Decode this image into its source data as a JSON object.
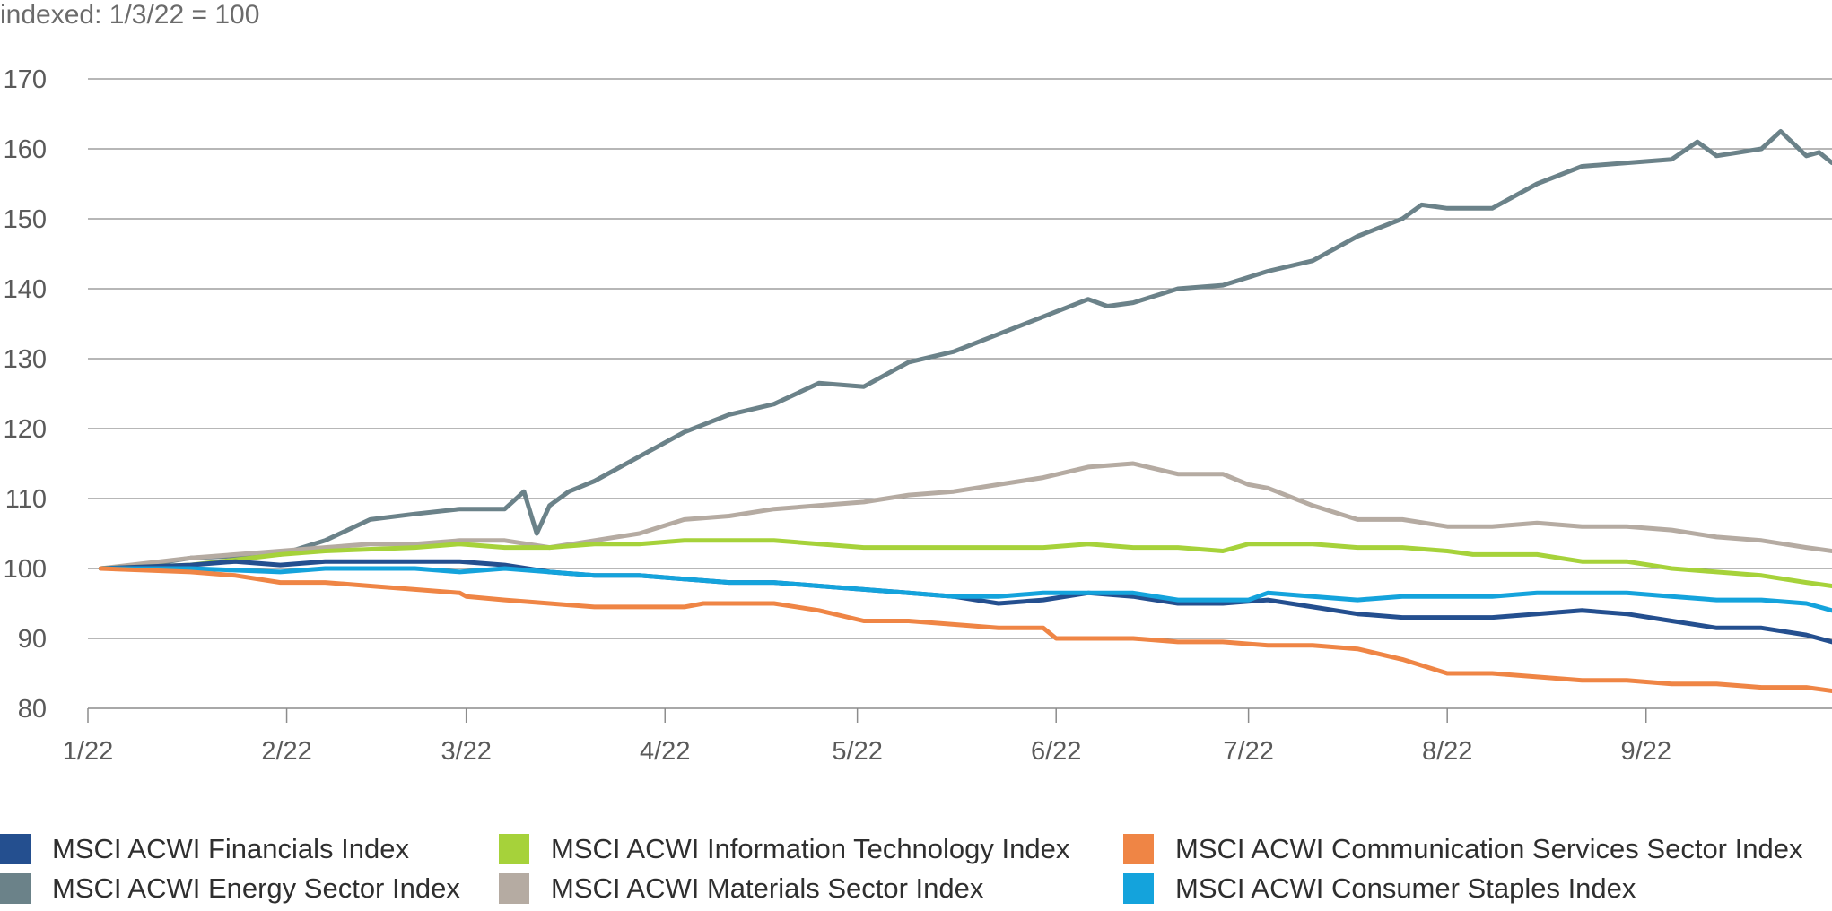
{
  "chart_data": {
    "type": "line",
    "title": "",
    "ylabel": "indexed: 1/3/22 = 100",
    "xlabel": "",
    "ylim": [
      80,
      170
    ],
    "yticks": [
      80,
      90,
      100,
      110,
      120,
      130,
      140,
      150,
      160,
      170
    ],
    "xlim": [
      "2022-01-01",
      "2022-09-30"
    ],
    "x_ticks": [
      {
        "date": "2022-01-01",
        "label": "1/22"
      },
      {
        "date": "2022-02-01",
        "label": "2/22"
      },
      {
        "date": "2022-03-01",
        "label": "3/22"
      },
      {
        "date": "2022-04-01",
        "label": "4/22"
      },
      {
        "date": "2022-05-01",
        "label": "5/22"
      },
      {
        "date": "2022-06-01",
        "label": "6/22"
      },
      {
        "date": "2022-07-01",
        "label": "7/22"
      },
      {
        "date": "2022-08-01",
        "label": "8/22"
      },
      {
        "date": "2022-09-01",
        "label": "9/22"
      }
    ],
    "grid": "horizontal",
    "legend_position": "bottom",
    "series": [
      {
        "name": "MSCI ACWI Energy Sector Index",
        "color": "#6b8289",
        "points": [
          [
            "2022-01-03",
            100
          ],
          [
            "2022-01-10",
            100.5
          ],
          [
            "2022-01-17",
            101.5
          ],
          [
            "2022-01-24",
            101.8
          ],
          [
            "2022-01-31",
            102
          ],
          [
            "2022-02-07",
            104
          ],
          [
            "2022-02-14",
            107
          ],
          [
            "2022-02-21",
            107.8
          ],
          [
            "2022-02-28",
            108.5
          ],
          [
            "2022-03-07",
            108.5
          ],
          [
            "2022-03-10",
            111
          ],
          [
            "2022-03-12",
            105
          ],
          [
            "2022-03-14",
            109
          ],
          [
            "2022-03-17",
            111
          ],
          [
            "2022-03-21",
            112.5
          ],
          [
            "2022-03-28",
            116
          ],
          [
            "2022-04-04",
            119.5
          ],
          [
            "2022-04-11",
            122
          ],
          [
            "2022-04-18",
            123.5
          ],
          [
            "2022-04-25",
            126.5
          ],
          [
            "2022-05-02",
            126
          ],
          [
            "2022-05-09",
            129.5
          ],
          [
            "2022-05-16",
            131
          ],
          [
            "2022-05-23",
            133.5
          ],
          [
            "2022-05-30",
            136
          ],
          [
            "2022-06-06",
            138.5
          ],
          [
            "2022-06-09",
            137.5
          ],
          [
            "2022-06-13",
            138
          ],
          [
            "2022-06-20",
            140
          ],
          [
            "2022-06-27",
            140.5
          ],
          [
            "2022-07-04",
            142.5
          ],
          [
            "2022-07-11",
            144
          ],
          [
            "2022-07-18",
            147.5
          ],
          [
            "2022-07-25",
            150
          ],
          [
            "2022-07-28",
            152
          ],
          [
            "2022-08-01",
            151.5
          ],
          [
            "2022-08-08",
            151.5
          ],
          [
            "2022-08-15",
            155
          ],
          [
            "2022-08-22",
            157.5
          ],
          [
            "2022-08-29",
            158
          ],
          [
            "2022-09-05",
            158.5
          ],
          [
            "2022-09-09",
            161
          ],
          [
            "2022-09-12",
            159
          ],
          [
            "2022-09-19",
            160
          ],
          [
            "2022-09-22",
            162.5
          ],
          [
            "2022-09-26",
            159
          ],
          [
            "2022-09-28",
            159.5
          ],
          [
            "2022-09-30",
            158
          ]
        ]
      },
      {
        "name": "MSCI ACWI Materials Sector Index",
        "color": "#b5aba2",
        "points": [
          [
            "2022-01-03",
            100
          ],
          [
            "2022-01-17",
            101.5
          ],
          [
            "2022-01-24",
            102
          ],
          [
            "2022-01-31",
            102.5
          ],
          [
            "2022-02-07",
            103
          ],
          [
            "2022-02-14",
            103.5
          ],
          [
            "2022-02-21",
            103.5
          ],
          [
            "2022-02-28",
            104
          ],
          [
            "2022-03-07",
            104
          ],
          [
            "2022-03-14",
            103
          ],
          [
            "2022-03-21",
            104
          ],
          [
            "2022-03-28",
            105
          ],
          [
            "2022-04-04",
            107
          ],
          [
            "2022-04-11",
            107.5
          ],
          [
            "2022-04-18",
            108.5
          ],
          [
            "2022-04-25",
            109
          ],
          [
            "2022-05-02",
            109.5
          ],
          [
            "2022-05-09",
            110.5
          ],
          [
            "2022-05-16",
            111
          ],
          [
            "2022-05-23",
            112
          ],
          [
            "2022-05-30",
            113
          ],
          [
            "2022-06-06",
            114.5
          ],
          [
            "2022-06-13",
            115
          ],
          [
            "2022-06-20",
            113.5
          ],
          [
            "2022-06-27",
            113.5
          ],
          [
            "2022-07-01",
            112
          ],
          [
            "2022-07-04",
            111.5
          ],
          [
            "2022-07-11",
            109
          ],
          [
            "2022-07-18",
            107
          ],
          [
            "2022-07-25",
            107
          ],
          [
            "2022-08-01",
            106
          ],
          [
            "2022-08-08",
            106
          ],
          [
            "2022-08-15",
            106.5
          ],
          [
            "2022-08-22",
            106
          ],
          [
            "2022-08-29",
            106
          ],
          [
            "2022-09-05",
            105.5
          ],
          [
            "2022-09-12",
            104.5
          ],
          [
            "2022-09-19",
            104
          ],
          [
            "2022-09-26",
            103
          ],
          [
            "2022-09-30",
            102.5
          ]
        ]
      },
      {
        "name": "MSCI ACWI Information Technology Index",
        "color": "#a6d23a",
        "points": [
          [
            "2022-01-03",
            100
          ],
          [
            "2022-01-17",
            100.5
          ],
          [
            "2022-01-31",
            102
          ],
          [
            "2022-02-07",
            102.5
          ],
          [
            "2022-02-21",
            103
          ],
          [
            "2022-02-28",
            103.5
          ],
          [
            "2022-03-07",
            103
          ],
          [
            "2022-03-14",
            103
          ],
          [
            "2022-03-21",
            103.5
          ],
          [
            "2022-03-28",
            103.5
          ],
          [
            "2022-04-04",
            104
          ],
          [
            "2022-04-11",
            104
          ],
          [
            "2022-04-18",
            104
          ],
          [
            "2022-04-25",
            103.5
          ],
          [
            "2022-05-02",
            103
          ],
          [
            "2022-05-09",
            103
          ],
          [
            "2022-05-16",
            103
          ],
          [
            "2022-05-23",
            103
          ],
          [
            "2022-05-30",
            103
          ],
          [
            "2022-06-06",
            103.5
          ],
          [
            "2022-06-13",
            103
          ],
          [
            "2022-06-20",
            103
          ],
          [
            "2022-06-27",
            102.5
          ],
          [
            "2022-07-01",
            103.5
          ],
          [
            "2022-07-11",
            103.5
          ],
          [
            "2022-07-18",
            103
          ],
          [
            "2022-07-25",
            103
          ],
          [
            "2022-08-01",
            102.5
          ],
          [
            "2022-08-05",
            102
          ],
          [
            "2022-08-15",
            102
          ],
          [
            "2022-08-22",
            101
          ],
          [
            "2022-08-29",
            101
          ],
          [
            "2022-09-05",
            100
          ],
          [
            "2022-09-12",
            99.5
          ],
          [
            "2022-09-19",
            99
          ],
          [
            "2022-09-26",
            98
          ],
          [
            "2022-09-30",
            97.5
          ]
        ]
      },
      {
        "name": "MSCI ACWI Financials Index",
        "color": "#244f8f",
        "points": [
          [
            "2022-01-03",
            100
          ],
          [
            "2022-01-17",
            100.5
          ],
          [
            "2022-01-24",
            101
          ],
          [
            "2022-01-31",
            100.5
          ],
          [
            "2022-02-07",
            101
          ],
          [
            "2022-02-14",
            101
          ],
          [
            "2022-02-21",
            101
          ],
          [
            "2022-02-28",
            101
          ],
          [
            "2022-03-07",
            100.5
          ],
          [
            "2022-03-14",
            99.5
          ],
          [
            "2022-03-21",
            99
          ],
          [
            "2022-03-28",
            99
          ],
          [
            "2022-04-04",
            98.5
          ],
          [
            "2022-04-11",
            98
          ],
          [
            "2022-04-18",
            98
          ],
          [
            "2022-04-25",
            97.5
          ],
          [
            "2022-05-02",
            97
          ],
          [
            "2022-05-09",
            96.5
          ],
          [
            "2022-05-16",
            96
          ],
          [
            "2022-05-23",
            95
          ],
          [
            "2022-05-30",
            95.5
          ],
          [
            "2022-06-06",
            96.5
          ],
          [
            "2022-06-13",
            96
          ],
          [
            "2022-06-20",
            95
          ],
          [
            "2022-06-27",
            95
          ],
          [
            "2022-07-04",
            95.5
          ],
          [
            "2022-07-11",
            94.5
          ],
          [
            "2022-07-18",
            93.5
          ],
          [
            "2022-07-25",
            93
          ],
          [
            "2022-08-01",
            93
          ],
          [
            "2022-08-08",
            93
          ],
          [
            "2022-08-15",
            93.5
          ],
          [
            "2022-08-22",
            94
          ],
          [
            "2022-08-29",
            93.5
          ],
          [
            "2022-09-05",
            92.5
          ],
          [
            "2022-09-12",
            91.5
          ],
          [
            "2022-09-19",
            91.5
          ],
          [
            "2022-09-26",
            90.5
          ],
          [
            "2022-09-30",
            89.5
          ]
        ]
      },
      {
        "name": "MSCI ACWI Consumer Staples Index",
        "color": "#14a3dc",
        "points": [
          [
            "2022-01-03",
            100
          ],
          [
            "2022-01-17",
            100
          ],
          [
            "2022-01-31",
            99.5
          ],
          [
            "2022-02-07",
            100
          ],
          [
            "2022-02-14",
            100
          ],
          [
            "2022-02-21",
            100
          ],
          [
            "2022-02-28",
            99.5
          ],
          [
            "2022-03-07",
            100
          ],
          [
            "2022-03-14",
            99.5
          ],
          [
            "2022-03-21",
            99
          ],
          [
            "2022-03-28",
            99
          ],
          [
            "2022-04-04",
            98.5
          ],
          [
            "2022-04-11",
            98
          ],
          [
            "2022-04-18",
            98
          ],
          [
            "2022-04-25",
            97.5
          ],
          [
            "2022-05-02",
            97
          ],
          [
            "2022-05-09",
            96.5
          ],
          [
            "2022-05-16",
            96
          ],
          [
            "2022-05-23",
            96
          ],
          [
            "2022-05-30",
            96.5
          ],
          [
            "2022-06-06",
            96.5
          ],
          [
            "2022-06-13",
            96.5
          ],
          [
            "2022-06-20",
            95.5
          ],
          [
            "2022-06-27",
            95.5
          ],
          [
            "2022-07-01",
            95.5
          ],
          [
            "2022-07-04",
            96.5
          ],
          [
            "2022-07-11",
            96
          ],
          [
            "2022-07-18",
            95.5
          ],
          [
            "2022-07-25",
            96
          ],
          [
            "2022-08-01",
            96
          ],
          [
            "2022-08-08",
            96
          ],
          [
            "2022-08-15",
            96.5
          ],
          [
            "2022-08-22",
            96.5
          ],
          [
            "2022-08-29",
            96.5
          ],
          [
            "2022-09-05",
            96
          ],
          [
            "2022-09-12",
            95.5
          ],
          [
            "2022-09-19",
            95.5
          ],
          [
            "2022-09-26",
            95
          ],
          [
            "2022-09-30",
            94
          ]
        ]
      },
      {
        "name": "MSCI ACWI Communication Services Sector Index",
        "color": "#ef8545",
        "points": [
          [
            "2022-01-03",
            100
          ],
          [
            "2022-01-17",
            99.5
          ],
          [
            "2022-01-24",
            99
          ],
          [
            "2022-01-31",
            98
          ],
          [
            "2022-02-01",
            98
          ],
          [
            "2022-02-07",
            98
          ],
          [
            "2022-02-14",
            97.5
          ],
          [
            "2022-02-21",
            97
          ],
          [
            "2022-02-28",
            96.5
          ],
          [
            "2022-03-01",
            96
          ],
          [
            "2022-03-07",
            95.5
          ],
          [
            "2022-03-14",
            95
          ],
          [
            "2022-03-21",
            94.5
          ],
          [
            "2022-03-28",
            94.5
          ],
          [
            "2022-04-04",
            94.5
          ],
          [
            "2022-04-07",
            95
          ],
          [
            "2022-04-11",
            95
          ],
          [
            "2022-04-18",
            95
          ],
          [
            "2022-04-25",
            94
          ],
          [
            "2022-05-02",
            92.5
          ],
          [
            "2022-05-09",
            92.5
          ],
          [
            "2022-05-16",
            92
          ],
          [
            "2022-05-23",
            91.5
          ],
          [
            "2022-05-30",
            91.5
          ],
          [
            "2022-06-01",
            90
          ],
          [
            "2022-06-06",
            90
          ],
          [
            "2022-06-13",
            90
          ],
          [
            "2022-06-20",
            89.5
          ],
          [
            "2022-06-27",
            89.5
          ],
          [
            "2022-07-04",
            89
          ],
          [
            "2022-07-11",
            89
          ],
          [
            "2022-07-18",
            88.5
          ],
          [
            "2022-07-25",
            87
          ],
          [
            "2022-08-01",
            85
          ],
          [
            "2022-08-08",
            85
          ],
          [
            "2022-08-15",
            84.5
          ],
          [
            "2022-08-22",
            84
          ],
          [
            "2022-08-29",
            84
          ],
          [
            "2022-09-05",
            83.5
          ],
          [
            "2022-09-12",
            83.5
          ],
          [
            "2022-09-19",
            83
          ],
          [
            "2022-09-26",
            83
          ],
          [
            "2022-09-30",
            82.5
          ]
        ]
      }
    ],
    "legend": [
      {
        "label": "MSCI ACWI Financials Index",
        "color": "#244f8f"
      },
      {
        "label": "MSCI ACWI Information Technology Index",
        "color": "#a6d23a"
      },
      {
        "label": "MSCI ACWI Communication Services Sector Index",
        "color": "#ef8545"
      },
      {
        "label": "MSCI ACWI Energy Sector Index",
        "color": "#6b8289"
      },
      {
        "label": "MSCI ACWI Materials Sector Index",
        "color": "#b5aba2"
      },
      {
        "label": "MSCI ACWI Consumer Staples Index",
        "color": "#14a3dc"
      }
    ]
  }
}
